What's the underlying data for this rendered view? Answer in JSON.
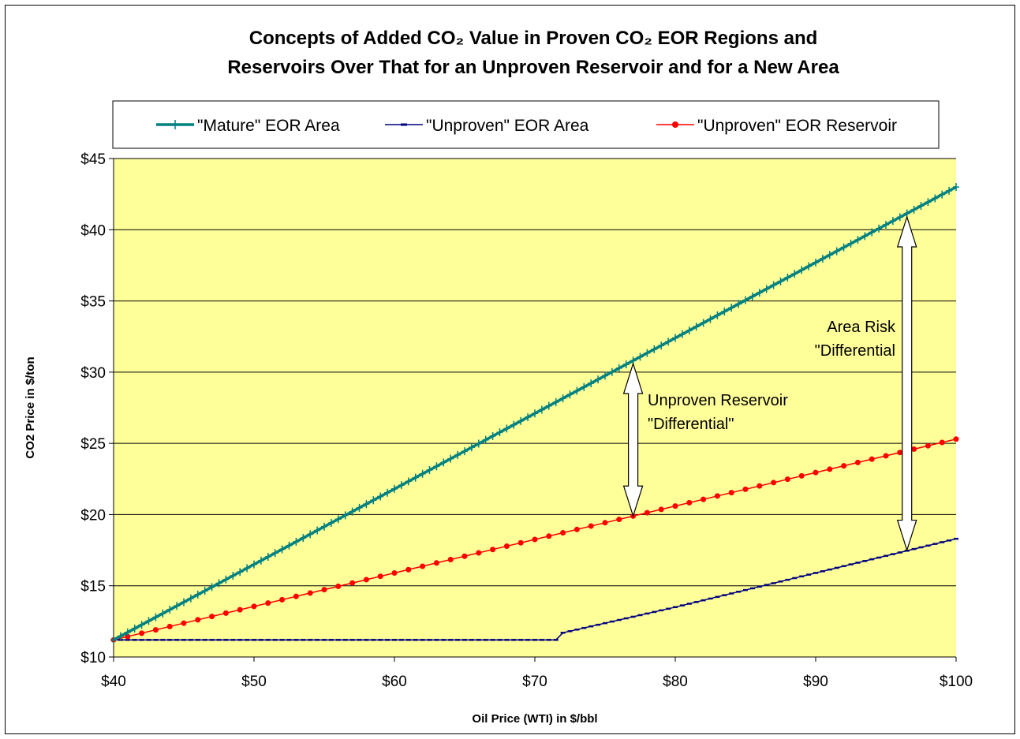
{
  "chart_data": {
    "type": "line",
    "title_line1": "Concepts of Added CO₂ Value in Proven CO₂ EOR Regions and",
    "title_line2": "Reservoirs Over That for an Unproven Reservoir and for a New Area",
    "xlabel": "Oil Price (WTI) in $/bbl",
    "ylabel": "CO2 Price in $/ton",
    "xlim": [
      40,
      100
    ],
    "ylim": [
      10,
      45
    ],
    "x_ticks": [
      40,
      50,
      60,
      70,
      80,
      90,
      100
    ],
    "x_tick_labels": [
      "$40",
      "$50",
      "$60",
      "$70",
      "$80",
      "$90",
      "$100"
    ],
    "y_ticks": [
      10,
      15,
      20,
      25,
      30,
      35,
      40,
      45
    ],
    "y_tick_labels": [
      "$10",
      "$15",
      "$20",
      "$25",
      "$30",
      "$35",
      "$40",
      "$45"
    ],
    "grid": "horizontal",
    "plot_background": "#ffff99",
    "legend_position": "top",
    "series": [
      {
        "name": "\"Mature\" EOR Area",
        "color": "#008080",
        "marker": "plus",
        "x": [
          40,
          50,
          60,
          70,
          80,
          90,
          100
        ],
        "values": [
          11.2,
          16.5,
          21.8,
          27.1,
          32.4,
          37.7,
          43.0
        ]
      },
      {
        "name": "\"Unproven\" EOR Area",
        "color": "#000080",
        "marker": "dash",
        "x": [
          40,
          71.5,
          72,
          80,
          90,
          100
        ],
        "values": [
          11.2,
          11.2,
          11.7,
          13.5,
          15.9,
          18.3
        ]
      },
      {
        "name": "\"Unproven\" EOR Reservoir",
        "color": "#ff0000",
        "marker": "circle",
        "x": [
          40,
          50,
          60,
          70,
          80,
          90,
          100
        ],
        "values": [
          11.2,
          13.55,
          15.9,
          18.25,
          20.6,
          22.95,
          25.3
        ]
      }
    ],
    "annotations": [
      {
        "name": "unproven-reservoir-differential",
        "lines": [
          "Unproven Reservoir",
          "\"Differential\""
        ],
        "arrow_x": 77,
        "arrow_y_from": 19.9,
        "arrow_y_to": 30.6
      },
      {
        "name": "area-risk-differential",
        "lines": [
          "Area Risk",
          "\"Differential"
        ],
        "arrow_x": 96.5,
        "arrow_y_from": 17.5,
        "arrow_y_to": 40.9
      }
    ]
  }
}
